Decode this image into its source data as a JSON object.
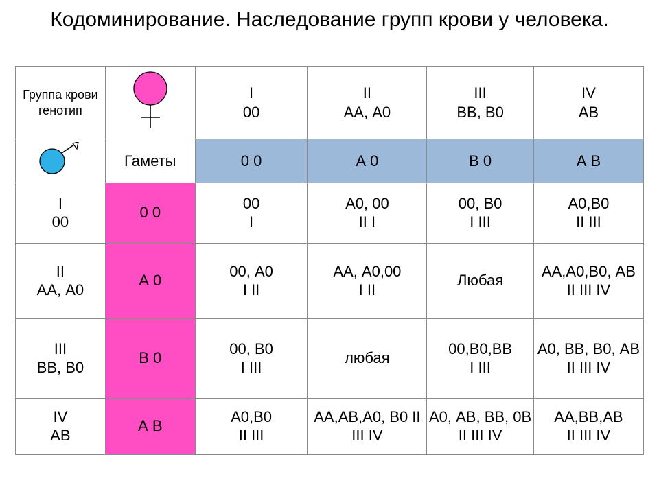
{
  "title": "Кодоминирование. Наследование групп крови у человека.",
  "colors": {
    "female": "#ff4ec4",
    "male": "#2fb0e6",
    "blueCell": "#9db9d9",
    "pinkCell": "#ff4ec4",
    "border": "#8b8b8b",
    "text": "#000000",
    "bg": "#ffffff"
  },
  "header": {
    "corner": "Группа крови генотип",
    "cols": [
      {
        "roman": "I",
        "geno": "00"
      },
      {
        "roman": "II",
        "geno": "АА, А0"
      },
      {
        "roman": "III",
        "geno": "ВВ, В0"
      },
      {
        "roman": "IV",
        "geno": "АВ"
      }
    ],
    "gametesLabel": "Гаметы",
    "gametesRow": [
      "0   0",
      "А   0",
      "В   0",
      "А   В"
    ]
  },
  "rows": [
    {
      "roman": "I",
      "geno": "00",
      "gamete": "0   0",
      "cells": [
        "00\nI",
        "А0, 00\nII   I",
        "00, В0\nI   III",
        "А0,В0\nII   III"
      ]
    },
    {
      "roman": "II",
      "geno": "АА, А0",
      "gamete": "А   0",
      "cells": [
        "00, А0\nI   II",
        "АА, А0,00\nI  II",
        "Любая",
        "АА,А0,В0, АВ\nII   III  IV"
      ]
    },
    {
      "roman": "III",
      "geno": "ВВ, В0",
      "gamete": "В   0",
      "cells": [
        "00, В0\nI   III",
        "любая",
        "00,В0,ВВ\nI   III",
        "А0, ВВ, В0, АВ\nII  III  IV"
      ]
    },
    {
      "roman": "IV",
      "geno": "АВ",
      "gamete": "А   В",
      "cells": [
        "А0,В0\nII  III",
        "АА,АВ,А0, В0 II  III IV",
        "А0, АВ, ВВ, 0В II III IV",
        "АА,ВВ,АВ\nII  III  IV"
      ]
    }
  ]
}
